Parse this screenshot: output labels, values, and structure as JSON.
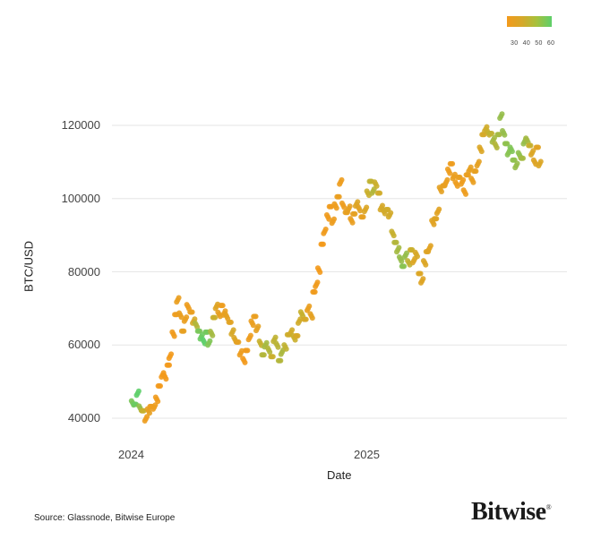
{
  "chart_data": {
    "type": "scatter",
    "title": "",
    "xlabel": "Date",
    "ylabel": "BTC/USD",
    "ylim": [
      38000,
      124000
    ],
    "y_ticks": [
      40000,
      60000,
      80000,
      100000,
      120000
    ],
    "x_ticks": [
      "2024",
      "2025"
    ],
    "grid": true,
    "colorbar": {
      "ticks": [
        30,
        40,
        50,
        60
      ],
      "position": "top-right",
      "colors": [
        "#f39a1c",
        "#5ecf6a"
      ]
    },
    "series": [
      {
        "name": "BTC/USD (colored by indicator)",
        "points": [
          {
            "date": "2024-01-01",
            "price": 44200,
            "c": 56
          },
          {
            "date": "2024-01-05",
            "price": 43800,
            "c": 58
          },
          {
            "date": "2024-01-09",
            "price": 46800,
            "c": 60
          },
          {
            "date": "2024-01-13",
            "price": 42800,
            "c": 52
          },
          {
            "date": "2024-01-17",
            "price": 42000,
            "c": 45
          },
          {
            "date": "2024-01-22",
            "price": 39800,
            "c": 32
          },
          {
            "date": "2024-01-26",
            "price": 42000,
            "c": 34
          },
          {
            "date": "2024-01-30",
            "price": 43200,
            "c": 32
          },
          {
            "date": "2024-02-04",
            "price": 43000,
            "c": 32
          },
          {
            "date": "2024-02-08",
            "price": 45200,
            "c": 31
          },
          {
            "date": "2024-02-12",
            "price": 48800,
            "c": 30
          },
          {
            "date": "2024-02-17",
            "price": 51800,
            "c": 30
          },
          {
            "date": "2024-02-21",
            "price": 51300,
            "c": 30
          },
          {
            "date": "2024-02-26",
            "price": 54500,
            "c": 30
          },
          {
            "date": "2024-02-29",
            "price": 56900,
            "c": 30
          },
          {
            "date": "2024-03-05",
            "price": 63000,
            "c": 31
          },
          {
            "date": "2024-03-09",
            "price": 68300,
            "c": 32
          },
          {
            "date": "2024-03-12",
            "price": 72300,
            "c": 33
          },
          {
            "date": "2024-03-16",
            "price": 68200,
            "c": 33
          },
          {
            "date": "2024-03-20",
            "price": 63800,
            "c": 34
          },
          {
            "date": "2024-03-24",
            "price": 67000,
            "c": 33
          },
          {
            "date": "2024-03-28",
            "price": 70500,
            "c": 32
          },
          {
            "date": "2024-04-02",
            "price": 69000,
            "c": 33
          },
          {
            "date": "2024-04-06",
            "price": 66500,
            "c": 40
          },
          {
            "date": "2024-04-10",
            "price": 65500,
            "c": 48
          },
          {
            "date": "2024-04-14",
            "price": 63800,
            "c": 56
          },
          {
            "date": "2024-04-18",
            "price": 62200,
            "c": 58
          },
          {
            "date": "2024-04-22",
            "price": 61000,
            "c": 60
          },
          {
            "date": "2024-04-26",
            "price": 63500,
            "c": 57
          },
          {
            "date": "2024-04-30",
            "price": 60500,
            "c": 55
          },
          {
            "date": "2024-05-04",
            "price": 63200,
            "c": 50
          },
          {
            "date": "2024-05-08",
            "price": 67500,
            "c": 44
          },
          {
            "date": "2024-05-12",
            "price": 70500,
            "c": 37
          },
          {
            "date": "2024-05-16",
            "price": 68400,
            "c": 34
          },
          {
            "date": "2024-05-20",
            "price": 70800,
            "c": 32
          },
          {
            "date": "2024-05-24",
            "price": 68700,
            "c": 33
          },
          {
            "date": "2024-05-28",
            "price": 67800,
            "c": 35
          },
          {
            "date": "2024-06-02",
            "price": 66200,
            "c": 36
          },
          {
            "date": "2024-06-06",
            "price": 63500,
            "c": 40
          },
          {
            "date": "2024-06-10",
            "price": 61500,
            "c": 38
          },
          {
            "date": "2024-06-14",
            "price": 60800,
            "c": 35
          },
          {
            "date": "2024-06-19",
            "price": 57800,
            "c": 32
          },
          {
            "date": "2024-06-24",
            "price": 55800,
            "c": 30
          },
          {
            "date": "2024-06-28",
            "price": 58500,
            "c": 31
          },
          {
            "date": "2024-07-03",
            "price": 62000,
            "c": 32
          },
          {
            "date": "2024-07-07",
            "price": 66000,
            "c": 33
          },
          {
            "date": "2024-07-11",
            "price": 67800,
            "c": 33
          },
          {
            "date": "2024-07-15",
            "price": 64500,
            "c": 35
          },
          {
            "date": "2024-07-20",
            "price": 60500,
            "c": 45
          },
          {
            "date": "2024-07-24",
            "price": 57300,
            "c": 48
          },
          {
            "date": "2024-07-28",
            "price": 60000,
            "c": 50
          },
          {
            "date": "2024-08-02",
            "price": 58700,
            "c": 48
          },
          {
            "date": "2024-08-07",
            "price": 56800,
            "c": 44
          },
          {
            "date": "2024-08-11",
            "price": 61500,
            "c": 46
          },
          {
            "date": "2024-08-15",
            "price": 60000,
            "c": 47
          },
          {
            "date": "2024-08-19",
            "price": 55700,
            "c": 48
          },
          {
            "date": "2024-08-23",
            "price": 58000,
            "c": 49
          },
          {
            "date": "2024-08-28",
            "price": 59500,
            "c": 46
          },
          {
            "date": "2024-09-02",
            "price": 62800,
            "c": 43
          },
          {
            "date": "2024-09-06",
            "price": 63500,
            "c": 42
          },
          {
            "date": "2024-09-11",
            "price": 62000,
            "c": 44
          },
          {
            "date": "2024-09-15",
            "price": 62500,
            "c": 40
          },
          {
            "date": "2024-09-19",
            "price": 66500,
            "c": 42
          },
          {
            "date": "2024-09-23",
            "price": 68500,
            "c": 45
          },
          {
            "date": "2024-09-28",
            "price": 67000,
            "c": 40
          },
          {
            "date": "2024-10-03",
            "price": 70000,
            "c": 33
          },
          {
            "date": "2024-10-08",
            "price": 68000,
            "c": 35
          },
          {
            "date": "2024-10-12",
            "price": 74500,
            "c": 31
          },
          {
            "date": "2024-10-16",
            "price": 76500,
            "c": 31
          },
          {
            "date": "2024-10-20",
            "price": 80500,
            "c": 30
          },
          {
            "date": "2024-10-25",
            "price": 87500,
            "c": 30
          },
          {
            "date": "2024-10-29",
            "price": 91000,
            "c": 31
          },
          {
            "date": "2024-11-03",
            "price": 95000,
            "c": 31
          },
          {
            "date": "2024-11-07",
            "price": 97800,
            "c": 31
          },
          {
            "date": "2024-11-11",
            "price": 93800,
            "c": 32
          },
          {
            "date": "2024-11-15",
            "price": 98000,
            "c": 32
          },
          {
            "date": "2024-11-19",
            "price": 100500,
            "c": 33
          },
          {
            "date": "2024-11-23",
            "price": 104500,
            "c": 32
          },
          {
            "date": "2024-11-27",
            "price": 98200,
            "c": 32
          },
          {
            "date": "2024-12-02",
            "price": 96200,
            "c": 34
          },
          {
            "date": "2024-12-06",
            "price": 97300,
            "c": 34
          },
          {
            "date": "2024-12-10",
            "price": 94000,
            "c": 33
          },
          {
            "date": "2024-12-14",
            "price": 95800,
            "c": 35
          },
          {
            "date": "2024-12-18",
            "price": 98500,
            "c": 38
          },
          {
            "date": "2024-12-22",
            "price": 97300,
            "c": 36
          },
          {
            "date": "2024-12-27",
            "price": 95000,
            "c": 34
          },
          {
            "date": "2025-01-01",
            "price": 97000,
            "c": 38
          },
          {
            "date": "2025-01-05",
            "price": 101500,
            "c": 44
          },
          {
            "date": "2025-01-09",
            "price": 104700,
            "c": 46
          },
          {
            "date": "2025-01-13",
            "price": 102000,
            "c": 48
          },
          {
            "date": "2025-01-17",
            "price": 104000,
            "c": 44
          },
          {
            "date": "2025-01-22",
            "price": 101500,
            "c": 42
          },
          {
            "date": "2025-01-26",
            "price": 97500,
            "c": 40
          },
          {
            "date": "2025-01-30",
            "price": 96500,
            "c": 41
          },
          {
            "date": "2025-02-04",
            "price": 97000,
            "c": 42
          },
          {
            "date": "2025-02-08",
            "price": 95500,
            "c": 41
          },
          {
            "date": "2025-02-13",
            "price": 90500,
            "c": 45
          },
          {
            "date": "2025-02-17",
            "price": 88000,
            "c": 48
          },
          {
            "date": "2025-02-21",
            "price": 86000,
            "c": 50
          },
          {
            "date": "2025-02-25",
            "price": 83500,
            "c": 52
          },
          {
            "date": "2025-03-01",
            "price": 81500,
            "c": 54
          },
          {
            "date": "2025-03-05",
            "price": 84500,
            "c": 52
          },
          {
            "date": "2025-03-10",
            "price": 82500,
            "c": 46
          },
          {
            "date": "2025-03-14",
            "price": 86000,
            "c": 44
          },
          {
            "date": "2025-03-18",
            "price": 83000,
            "c": 38
          },
          {
            "date": "2025-03-22",
            "price": 84800,
            "c": 40
          },
          {
            "date": "2025-03-27",
            "price": 79500,
            "c": 38
          },
          {
            "date": "2025-03-31",
            "price": 77500,
            "c": 37
          },
          {
            "date": "2025-04-04",
            "price": 82500,
            "c": 38
          },
          {
            "date": "2025-04-08",
            "price": 85500,
            "c": 37
          },
          {
            "date": "2025-04-12",
            "price": 86500,
            "c": 36
          },
          {
            "date": "2025-04-17",
            "price": 93500,
            "c": 36
          },
          {
            "date": "2025-04-21",
            "price": 94500,
            "c": 37
          },
          {
            "date": "2025-04-25",
            "price": 96500,
            "c": 36
          },
          {
            "date": "2025-04-29",
            "price": 102500,
            "c": 35
          },
          {
            "date": "2025-05-04",
            "price": 103500,
            "c": 34
          },
          {
            "date": "2025-05-08",
            "price": 104500,
            "c": 33
          },
          {
            "date": "2025-05-12",
            "price": 107500,
            "c": 32
          },
          {
            "date": "2025-05-16",
            "price": 109500,
            "c": 32
          },
          {
            "date": "2025-05-20",
            "price": 106000,
            "c": 33
          },
          {
            "date": "2025-05-24",
            "price": 104000,
            "c": 32
          },
          {
            "date": "2025-05-28",
            "price": 105800,
            "c": 33
          },
          {
            "date": "2025-06-02",
            "price": 104500,
            "c": 32
          },
          {
            "date": "2025-06-06",
            "price": 101800,
            "c": 32
          },
          {
            "date": "2025-06-10",
            "price": 106500,
            "c": 33
          },
          {
            "date": "2025-06-14",
            "price": 108000,
            "c": 34
          },
          {
            "date": "2025-06-18",
            "price": 105000,
            "c": 33
          },
          {
            "date": "2025-06-22",
            "price": 107500,
            "c": 34
          },
          {
            "date": "2025-06-27",
            "price": 109500,
            "c": 35
          },
          {
            "date": "2025-07-01",
            "price": 113500,
            "c": 38
          },
          {
            "date": "2025-07-05",
            "price": 117500,
            "c": 40
          },
          {
            "date": "2025-07-09",
            "price": 119000,
            "c": 42
          },
          {
            "date": "2025-07-13",
            "price": 118000,
            "c": 44
          },
          {
            "date": "2025-07-17",
            "price": 117800,
            "c": 46
          },
          {
            "date": "2025-07-21",
            "price": 116000,
            "c": 50
          },
          {
            "date": "2025-07-25",
            "price": 114500,
            "c": 48
          },
          {
            "date": "2025-07-29",
            "price": 117500,
            "c": 50
          },
          {
            "date": "2025-08-02",
            "price": 122500,
            "c": 52
          },
          {
            "date": "2025-08-06",
            "price": 118000,
            "c": 52
          },
          {
            "date": "2025-08-10",
            "price": 115000,
            "c": 53
          },
          {
            "date": "2025-08-14",
            "price": 112500,
            "c": 54
          },
          {
            "date": "2025-08-18",
            "price": 113500,
            "c": 55
          },
          {
            "date": "2025-08-22",
            "price": 110500,
            "c": 53
          },
          {
            "date": "2025-08-26",
            "price": 109000,
            "c": 52
          },
          {
            "date": "2025-08-31",
            "price": 112000,
            "c": 53
          },
          {
            "date": "2025-09-04",
            "price": 111000,
            "c": 50
          },
          {
            "date": "2025-09-08",
            "price": 115500,
            "c": 52
          },
          {
            "date": "2025-09-12",
            "price": 116000,
            "c": 50
          },
          {
            "date": "2025-09-16",
            "price": 114500,
            "c": 45
          },
          {
            "date": "2025-09-20",
            "price": 112500,
            "c": 38
          },
          {
            "date": "2025-09-24",
            "price": 110000,
            "c": 37
          },
          {
            "date": "2025-09-28",
            "price": 114000,
            "c": 36
          },
          {
            "date": "2025-10-02",
            "price": 109500,
            "c": 38
          }
        ]
      }
    ]
  },
  "legend": {
    "ticks": [
      "30",
      "40",
      "50",
      "60"
    ]
  },
  "axes": {
    "ylabel": "BTC/USD",
    "xlabel": "Date",
    "yticks": [
      "120000",
      "100000",
      "80000",
      "60000",
      "40000"
    ],
    "xticks": [
      "2024",
      "2025"
    ]
  },
  "footer": {
    "source": "Source: Glassnode, Bitwise Europe",
    "logo": "Bitwise",
    "logo_mark": "®"
  },
  "colors": {
    "low": "#f39a1c",
    "mid": "#c7b02f",
    "high": "#5ecf6a",
    "grid": "#e6e6e6"
  }
}
